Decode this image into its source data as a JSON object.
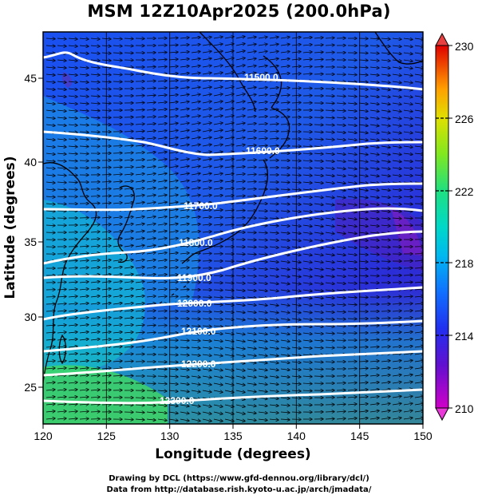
{
  "title": "MSM 12Z10Apr2025 (200.0hPa)",
  "x_axis": {
    "label": "Longitude (degrees)",
    "ticks": [
      "120",
      "125",
      "130",
      "135",
      "140",
      "145",
      "150"
    ]
  },
  "y_axis": {
    "label": "Latitude  (degrees)",
    "ticks": [
      "25",
      "30",
      "35",
      "40",
      "45"
    ]
  },
  "colorbar": {
    "ticks": [
      "210",
      "214",
      "218",
      "222",
      "226",
      "230"
    ],
    "range": [
      210,
      230
    ],
    "colors": [
      "#c800c8",
      "#5000c8",
      "#1e3cff",
      "#0090ff",
      "#00d8d8",
      "#20e080",
      "#80e800",
      "#d0e000",
      "#ffb000",
      "#ff5000",
      "#e00000"
    ]
  },
  "contours": [
    {
      "label": "11500.0"
    },
    {
      "label": "11600.0"
    },
    {
      "label": "11700.0"
    },
    {
      "label": "11800.0"
    },
    {
      "label": "11900.0"
    },
    {
      "label": "12000.0"
    },
    {
      "label": "12100.0"
    },
    {
      "label": "12200.0"
    },
    {
      "label": "12300.0"
    }
  ],
  "credits": {
    "line1": "Drawing by DCL (https://www.gfd-dennou.org/library/dcl/)",
    "line2": "Data from http://database.rish.kyoto-u.ac.jp/arch/jmadata/"
  }
}
